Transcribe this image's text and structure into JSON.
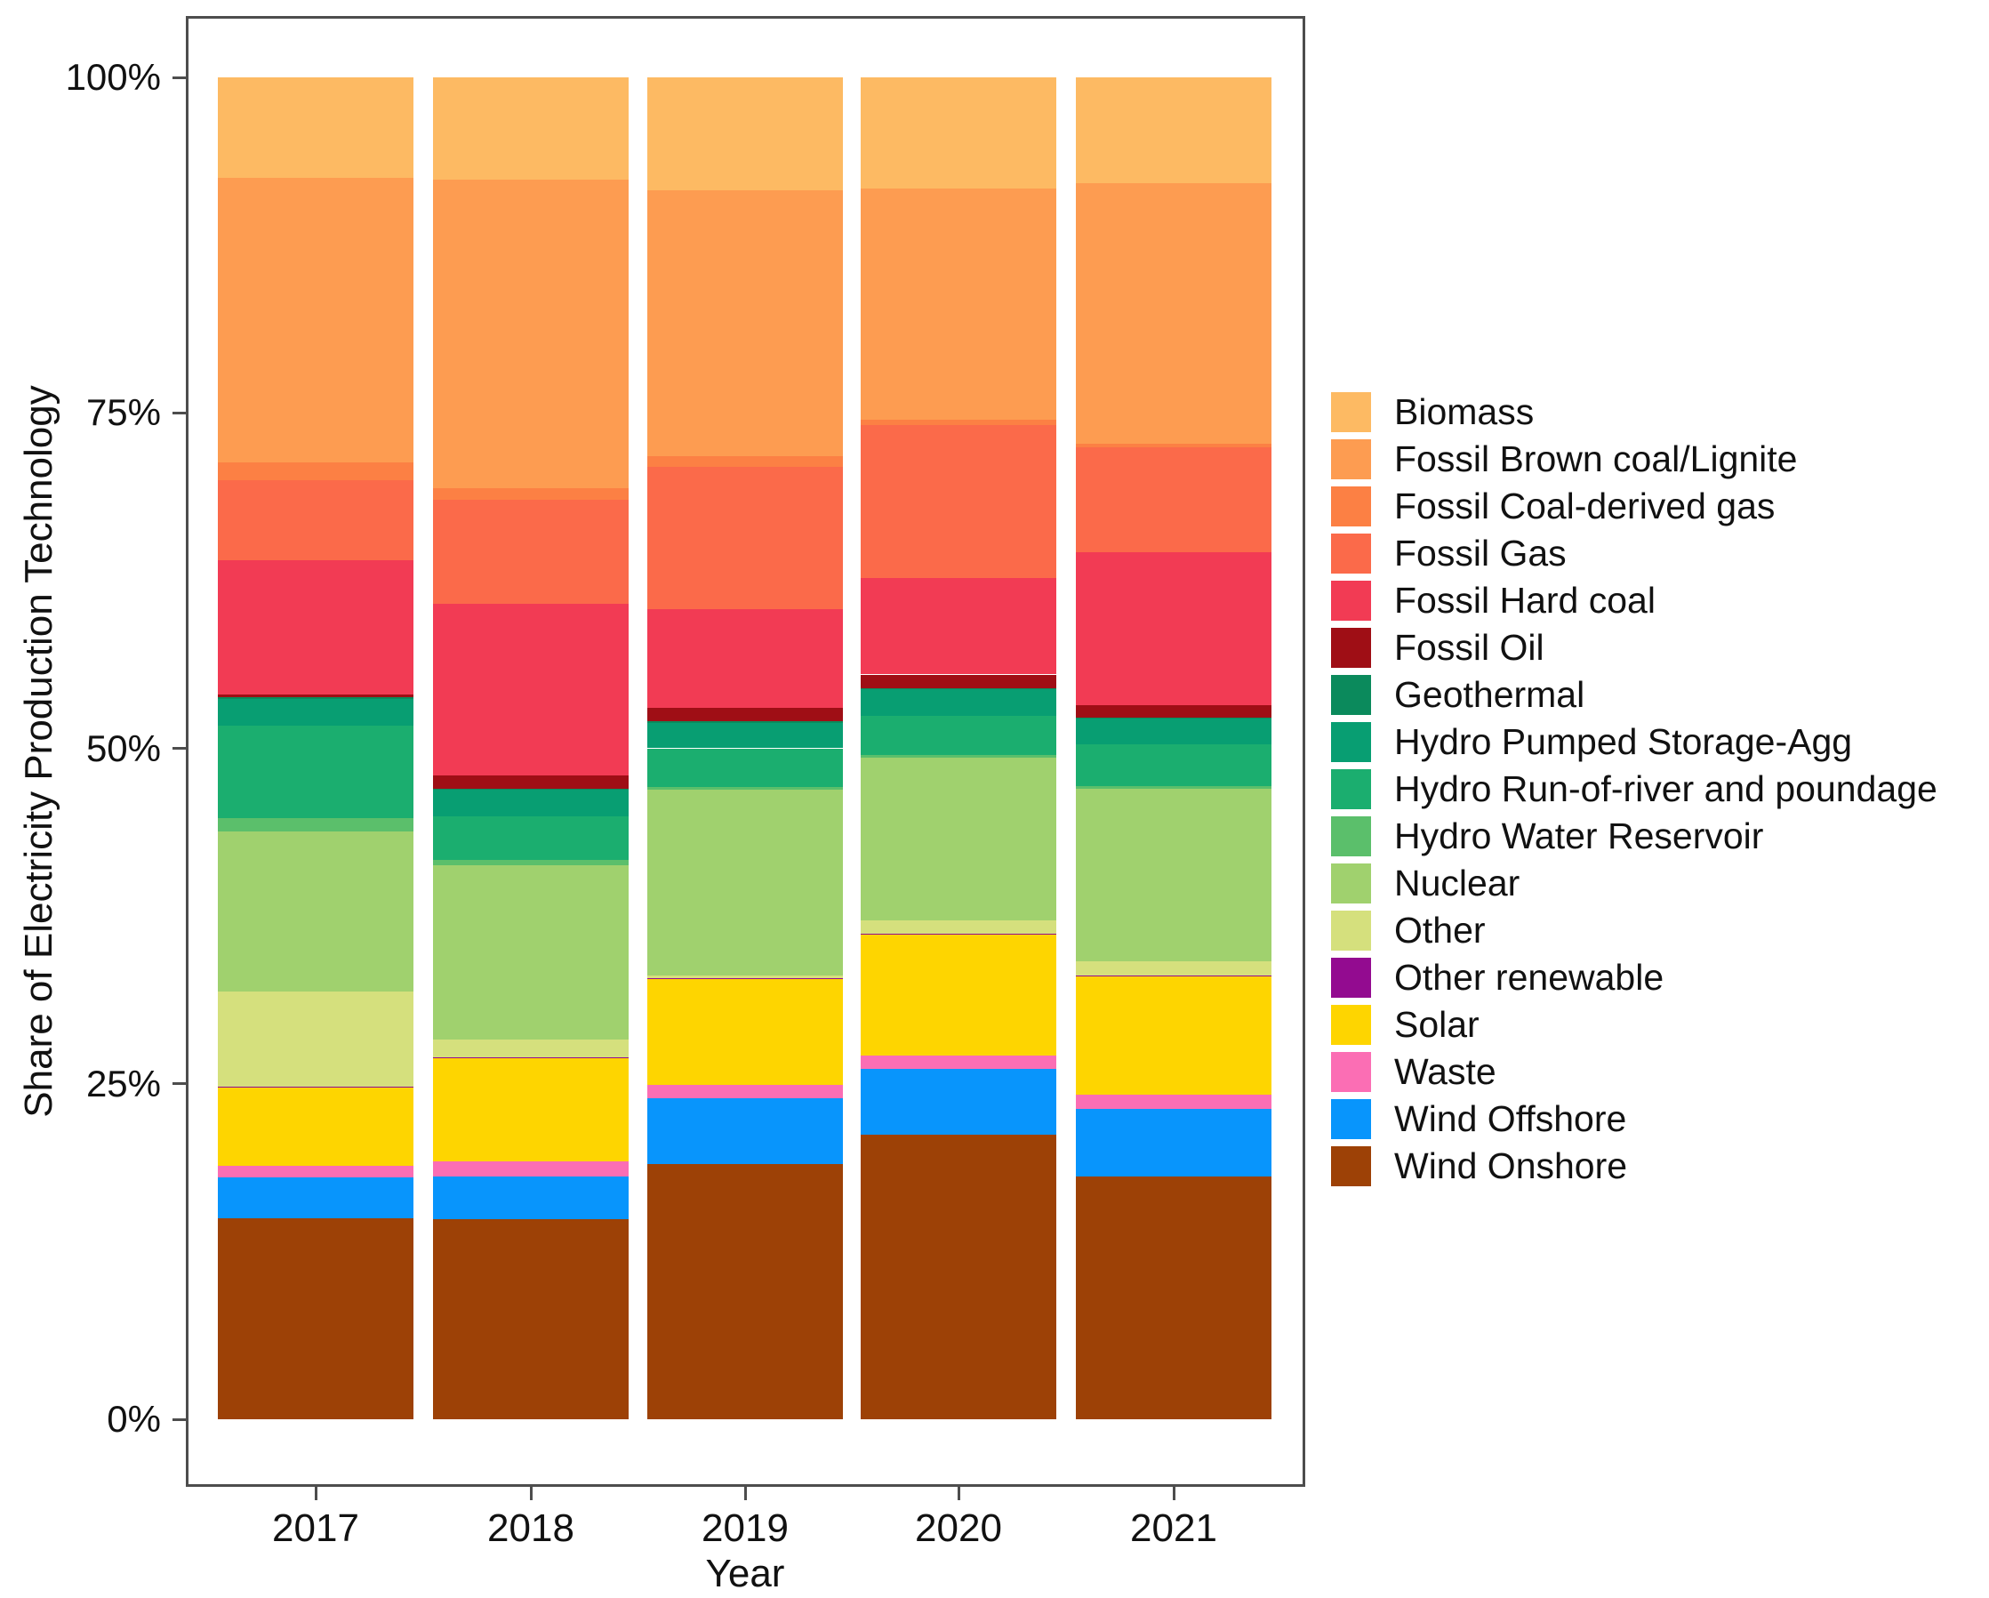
{
  "chart_data": {
    "type": "bar",
    "stacked": true,
    "title": "",
    "xlabel": "Year",
    "ylabel": "Share of Electricity Production Technology",
    "categories": [
      "2017",
      "2018",
      "2019",
      "2020",
      "2021"
    ],
    "ylim": [
      0,
      100
    ],
    "y_tick_values": [
      0,
      25,
      50,
      75,
      100
    ],
    "y_tick_labels": [
      "0%",
      "25%",
      "50%",
      "75%",
      "100%"
    ],
    "grid": false,
    "legend_position": "right",
    "units": "percent",
    "stacking_order_note": "bottom of bar = last series in list (Wind Onshore), top of bar = first series (Biomass)",
    "series": [
      {
        "name": "Biomass",
        "color": "#FDBA63",
        "values": [
          7.5,
          7.6,
          8.4,
          8.3,
          7.9
        ]
      },
      {
        "name": "Fossil Brown coal/Lignite",
        "color": "#FD9C51",
        "values": [
          21.2,
          23.0,
          19.8,
          17.2,
          19.4
        ]
      },
      {
        "name": "Fossil Coal-derived gas",
        "color": "#FC8044",
        "values": [
          1.3,
          0.9,
          0.8,
          0.4,
          0.3
        ]
      },
      {
        "name": "Fossil Gas",
        "color": "#FB6A4A",
        "values": [
          6.0,
          7.7,
          10.6,
          11.4,
          7.8
        ]
      },
      {
        "name": "Fossil Hard coal",
        "color": "#F23B54",
        "values": [
          10.0,
          12.8,
          7.4,
          7.2,
          11.4
        ]
      },
      {
        "name": "Fossil Oil",
        "color": "#9F0E15",
        "values": [
          0.2,
          1.0,
          1.0,
          1.0,
          0.9
        ]
      },
      {
        "name": "Geothermal",
        "color": "#0B8A5C",
        "values": [
          0.1,
          0.1,
          0.1,
          0.1,
          0.1
        ]
      },
      {
        "name": "Hydro Pumped Storage-Agg",
        "color": "#089E72",
        "values": [
          2.0,
          2.0,
          1.9,
          2.0,
          1.9
        ]
      },
      {
        "name": "Hydro Run-of-river and poundage",
        "color": "#1BAE6F",
        "values": [
          6.9,
          3.2,
          2.9,
          2.9,
          3.1
        ]
      },
      {
        "name": "Hydro Water Reservoir",
        "color": "#5BBF6B",
        "values": [
          1.0,
          0.4,
          0.2,
          0.2,
          0.2
        ]
      },
      {
        "name": "Nuclear",
        "color": "#A0D16E",
        "values": [
          11.9,
          13.0,
          13.8,
          12.1,
          12.9
        ]
      },
      {
        "name": "Other",
        "color": "#D5E07D",
        "values": [
          7.1,
          1.3,
          0.2,
          1.0,
          1.0
        ]
      },
      {
        "name": "Other renewable",
        "color": "#930B90",
        "values": [
          0.1,
          0.1,
          0.1,
          0.1,
          0.1
        ]
      },
      {
        "name": "Solar",
        "color": "#FED500",
        "values": [
          5.8,
          7.7,
          7.9,
          9.0,
          8.8
        ]
      },
      {
        "name": "Waste",
        "color": "#FB6EB4",
        "values": [
          0.9,
          1.1,
          1.0,
          1.0,
          1.1
        ]
      },
      {
        "name": "Wind Offshore",
        "color": "#0895FC",
        "values": [
          3.0,
          3.2,
          4.9,
          4.9,
          5.0
        ]
      },
      {
        "name": "Wind Onshore",
        "color": "#9D4106",
        "values": [
          15.0,
          14.9,
          19.0,
          21.2,
          18.1
        ]
      }
    ]
  }
}
